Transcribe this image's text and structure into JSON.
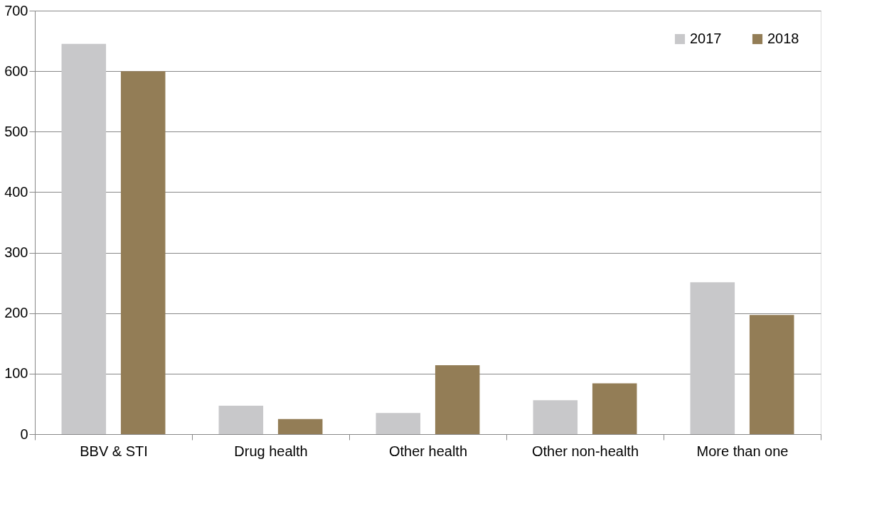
{
  "chart_data": {
    "type": "bar",
    "categories": [
      "BBV & STI",
      "Drug health",
      "Other health",
      "Other non-health",
      "More than one"
    ],
    "series": [
      {
        "name": "2017",
        "color": "#c8c8ca",
        "values": [
          645,
          47,
          35,
          56,
          251
        ]
      },
      {
        "name": "2018",
        "color": "#937d56",
        "values": [
          600,
          25,
          114,
          84,
          197
        ]
      }
    ],
    "ylim": [
      0,
      700
    ],
    "yticks": [
      0,
      100,
      200,
      300,
      400,
      500,
      600,
      700
    ],
    "grid": "y",
    "legend": "top right"
  }
}
